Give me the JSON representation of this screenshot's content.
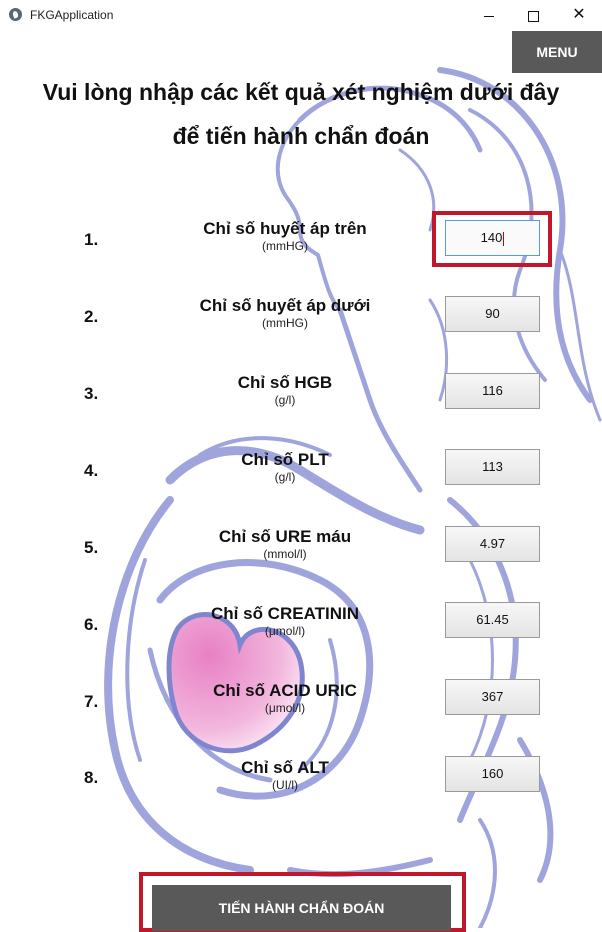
{
  "window": {
    "title": "FKGApplication",
    "minimize_glyph": "",
    "maximize_glyph": "",
    "close_glyph": "✕"
  },
  "menu": {
    "label": "MENU"
  },
  "heading": {
    "line1": "Vui lòng nhập các kết quả xét nghiệm dưới đây",
    "line2": "để tiến hành chẩn đoán"
  },
  "fields": [
    {
      "number": "1.",
      "name": "Chỉ số huyết áp trên",
      "unit": "(mmHG)",
      "value": "140"
    },
    {
      "number": "2.",
      "name": "Chỉ số huyết áp dưới",
      "unit": "(mmHG)",
      "value": "90"
    },
    {
      "number": "3.",
      "name": "Chỉ số HGB",
      "unit": "(g/l)",
      "value": "116"
    },
    {
      "number": "4.",
      "name": "Chỉ số PLT",
      "unit": "(g/l)",
      "value": "113"
    },
    {
      "number": "5.",
      "name": "Chỉ số URE máu",
      "unit": "(mmol/l)",
      "value": "4.97"
    },
    {
      "number": "6.",
      "name": "Chỉ số CREATININ",
      "unit": "(μmol/l)",
      "value": "61.45"
    },
    {
      "number": "7.",
      "name": "Chỉ số ACID URIC",
      "unit": "(μmol/l)",
      "value": "367"
    },
    {
      "number": "8.",
      "name": "Chỉ số ALT",
      "unit": "(UI/l)",
      "value": "160"
    }
  ],
  "diagnose": {
    "label": "TIẾN HÀNH CHẨN ĐOÁN"
  },
  "colors": {
    "accent_red": "#c0172d",
    "button_gray": "#595959",
    "art_blue": "#8f95d6",
    "heart_pink": "#e98dc9"
  }
}
